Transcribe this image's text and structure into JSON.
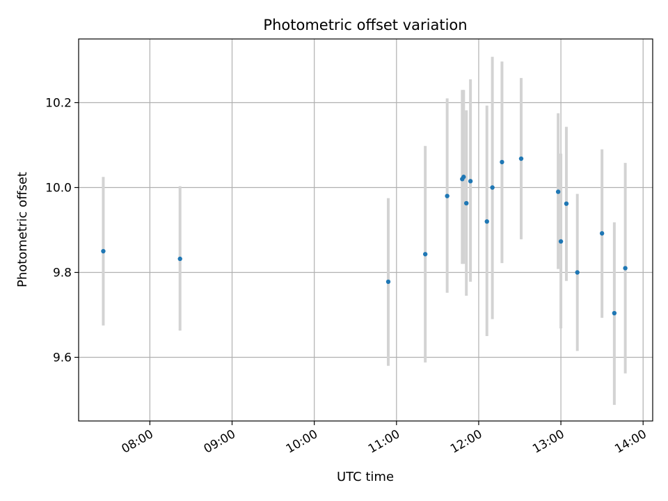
{
  "chart_data": {
    "type": "scatter",
    "title": "Photometric offset variation",
    "xlabel": "UTC time",
    "ylabel": "Photometric offset",
    "x_ticks": [
      "08:00",
      "09:00",
      "10:00",
      "11:00",
      "12:00",
      "13:00",
      "14:00"
    ],
    "y_ticks": [
      "9.6",
      "9.8",
      "10.0",
      "10.2"
    ],
    "xlim": [
      "07:08",
      "14:07"
    ],
    "ylim": [
      9.45,
      10.35
    ],
    "grid": true,
    "colors": {
      "point": "#1f77b4",
      "errorbar": "#d3d3d3",
      "grid": "#b0b0b0"
    },
    "points": [
      {
        "x": "07:26",
        "y": 9.85,
        "yerr_low": 9.675,
        "yerr_high": 10.025
      },
      {
        "x": "08:22",
        "y": 9.832,
        "yerr_low": 9.663,
        "yerr_high": 10.003
      },
      {
        "x": "10:54",
        "y": 9.778,
        "yerr_low": 9.58,
        "yerr_high": 9.975
      },
      {
        "x": "11:21",
        "y": 9.843,
        "yerr_low": 9.588,
        "yerr_high": 10.098
      },
      {
        "x": "11:37",
        "y": 9.98,
        "yerr_low": 9.752,
        "yerr_high": 10.21
      },
      {
        "x": "11:48",
        "y": 10.02,
        "yerr_low": 9.82,
        "yerr_high": 10.23
      },
      {
        "x": "11:49",
        "y": 10.025,
        "yerr_low": 9.82,
        "yerr_high": 10.23
      },
      {
        "x": "11:51",
        "y": 9.963,
        "yerr_low": 9.745,
        "yerr_high": 10.182
      },
      {
        "x": "11:54",
        "y": 10.015,
        "yerr_low": 9.778,
        "yerr_high": 10.255
      },
      {
        "x": "12:06",
        "y": 9.92,
        "yerr_low": 9.65,
        "yerr_high": 10.193
      },
      {
        "x": "12:10",
        "y": 10.0,
        "yerr_low": 9.69,
        "yerr_high": 10.308
      },
      {
        "x": "12:17",
        "y": 10.06,
        "yerr_low": 9.822,
        "yerr_high": 10.297
      },
      {
        "x": "12:31",
        "y": 10.068,
        "yerr_low": 9.878,
        "yerr_high": 10.258
      },
      {
        "x": "12:58",
        "y": 9.99,
        "yerr_low": 9.808,
        "yerr_high": 10.175
      },
      {
        "x": "13:00",
        "y": 9.873,
        "yerr_low": 9.668,
        "yerr_high": 10.08
      },
      {
        "x": "13:04",
        "y": 9.962,
        "yerr_low": 9.78,
        "yerr_high": 10.143
      },
      {
        "x": "13:12",
        "y": 9.8,
        "yerr_low": 9.615,
        "yerr_high": 9.985
      },
      {
        "x": "13:30",
        "y": 9.892,
        "yerr_low": 9.693,
        "yerr_high": 10.09
      },
      {
        "x": "13:39",
        "y": 9.704,
        "yerr_low": 9.488,
        "yerr_high": 9.918
      },
      {
        "x": "13:47",
        "y": 9.81,
        "yerr_low": 9.562,
        "yerr_high": 10.058
      }
    ]
  }
}
